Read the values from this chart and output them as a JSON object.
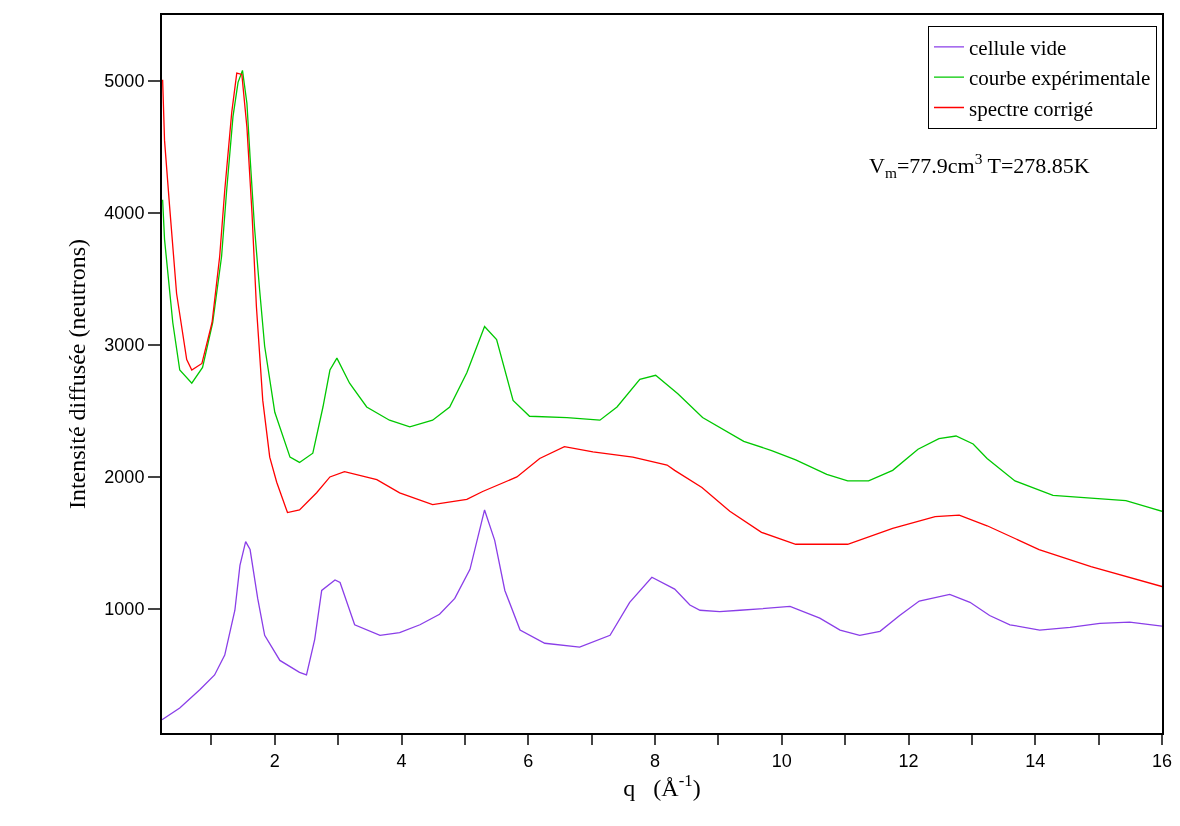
{
  "chart_data": {
    "type": "line",
    "xlabel": "q   (Å$^{-1}$)",
    "ylabel": "Intensité diffusée (neutrons)",
    "xlim": [
      0.22,
      16
    ],
    "ylim": [
      60,
      5500
    ],
    "xticks": [
      {
        "value": 1,
        "label": null
      },
      2,
      {
        "value": 3,
        "label": null
      },
      4,
      {
        "value": 5,
        "label": null
      },
      6,
      {
        "value": 7,
        "label": null
      },
      8,
      {
        "value": 9,
        "label": null
      },
      10,
      {
        "value": 11,
        "label": null
      },
      12,
      {
        "value": 13,
        "label": null
      },
      14,
      {
        "value": 15,
        "label": null
      },
      16
    ],
    "yticks": [
      1000,
      2000,
      3000,
      4000,
      5000
    ],
    "grid": false,
    "legend": "top right",
    "marker": "none",
    "line_style": "solid",
    "annotations": [
      "V$_{m}$=77.9cm$^{3}$ T=278.85K"
    ],
    "series": [
      {
        "name": "cellule vide",
        "color": "#8a3ee8",
        "x": [
          0.22,
          0.5,
          0.82,
          1.05,
          1.21,
          1.37,
          1.45,
          1.54,
          1.61,
          1.73,
          1.84,
          2.08,
          2.39,
          2.5,
          2.63,
          2.74,
          2.95,
          3.03,
          3.26,
          3.66,
          3.97,
          4.29,
          4.6,
          4.84,
          5.08,
          5.31,
          5.47,
          5.63,
          5.87,
          6.26,
          6.81,
          7.29,
          7.6,
          7.95,
          8.31,
          8.55,
          8.71,
          9.02,
          9.34,
          9.65,
          10.13,
          10.6,
          10.92,
          11.23,
          11.55,
          11.86,
          12.17,
          12.65,
          12.97,
          13.28,
          13.6,
          14.07,
          14.55,
          15.02,
          15.49,
          16
        ],
        "values": [
          160,
          250,
          390,
          500,
          650,
          990,
          1330,
          1510,
          1450,
          1080,
          800,
          610,
          520,
          500,
          770,
          1140,
          1220,
          1200,
          880,
          800,
          820,
          880,
          960,
          1080,
          1300,
          1750,
          1520,
          1140,
          840,
          740,
          710,
          800,
          1050,
          1240,
          1150,
          1030,
          990,
          980,
          990,
          1000,
          1020,
          930,
          840,
          800,
          830,
          950,
          1060,
          1110,
          1050,
          950,
          880,
          840,
          860,
          890,
          900,
          870
        ]
      },
      {
        "name": "courbe expérimentale",
        "color": "#00c800",
        "x": [
          0.23,
          0.26,
          0.39,
          0.5,
          0.69,
          0.86,
          1.02,
          1.16,
          1.24,
          1.34,
          1.42,
          1.49,
          1.56,
          1.61,
          1.68,
          1.76,
          1.84,
          2.0,
          2.24,
          2.39,
          2.6,
          2.76,
          2.87,
          2.98,
          3.18,
          3.45,
          3.81,
          4.13,
          4.49,
          4.76,
          5.03,
          5.31,
          5.5,
          5.76,
          6.02,
          6.61,
          7.13,
          7.4,
          7.76,
          8.01,
          8.36,
          8.75,
          9.4,
          9.84,
          10.22,
          10.71,
          11.04,
          11.37,
          11.75,
          12.15,
          12.48,
          12.75,
          13.02,
          13.24,
          13.68,
          14.28,
          14.88,
          15.43,
          16
        ],
        "values": [
          4100,
          3800,
          3170,
          2810,
          2710,
          2830,
          3170,
          3670,
          4170,
          4730,
          4990,
          5080,
          4830,
          4420,
          3890,
          3420,
          2990,
          2490,
          2150,
          2110,
          2180,
          2530,
          2810,
          2900,
          2710,
          2530,
          2430,
          2380,
          2430,
          2530,
          2790,
          3140,
          3040,
          2580,
          2460,
          2450,
          2430,
          2530,
          2740,
          2770,
          2630,
          2450,
          2270,
          2200,
          2130,
          2020,
          1970,
          1970,
          2050,
          2210,
          2290,
          2310,
          2250,
          2140,
          1970,
          1860,
          1840,
          1820,
          1740
        ]
      },
      {
        "name": "spectre corrigé",
        "color": "#ff0000",
        "x": [
          0.23,
          0.26,
          0.34,
          0.45,
          0.61,
          0.69,
          0.85,
          1.01,
          1.13,
          1.21,
          1.32,
          1.4,
          1.48,
          1.56,
          1.64,
          1.71,
          1.81,
          1.92,
          2.03,
          2.2,
          2.39,
          2.66,
          2.87,
          3.1,
          3.61,
          3.97,
          4.49,
          5.03,
          5.28,
          5.82,
          6.18,
          6.57,
          7.02,
          7.65,
          8.19,
          8.31,
          8.74,
          9.18,
          9.68,
          10.22,
          11.04,
          11.75,
          12.42,
          12.8,
          13.24,
          14.06,
          14.88,
          16
        ],
        "values": [
          5010,
          4550,
          4050,
          3390,
          2890,
          2810,
          2860,
          3170,
          3670,
          4170,
          4760,
          5060,
          5050,
          4650,
          4000,
          3290,
          2580,
          2150,
          1960,
          1730,
          1750,
          1880,
          2000,
          2040,
          1980,
          1880,
          1790,
          1830,
          1890,
          2000,
          2140,
          2230,
          2190,
          2150,
          2090,
          2050,
          1920,
          1740,
          1580,
          1490,
          1490,
          1610,
          1700,
          1710,
          1630,
          1450,
          1320,
          1170
        ]
      }
    ]
  }
}
